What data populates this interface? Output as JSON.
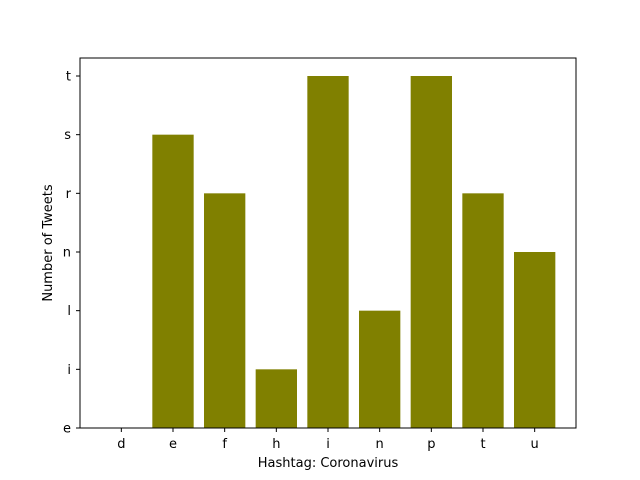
{
  "chart_data": {
    "type": "bar",
    "title": "",
    "xlabel": "Hashtag: Coronavirus",
    "ylabel": "Number of Tweets",
    "categories": [
      "d",
      "e",
      "f",
      "h",
      "i",
      "n",
      "p",
      "t",
      "u"
    ],
    "y_tick_labels": [
      "e",
      "i",
      "l",
      "n",
      "r",
      "s",
      "t"
    ],
    "values": [
      0,
      5,
      4,
      1,
      6,
      2,
      6,
      4,
      3
    ],
    "ylim": [
      0,
      6
    ],
    "bar_color": "#808000",
    "grid": false,
    "legend": "none"
  }
}
